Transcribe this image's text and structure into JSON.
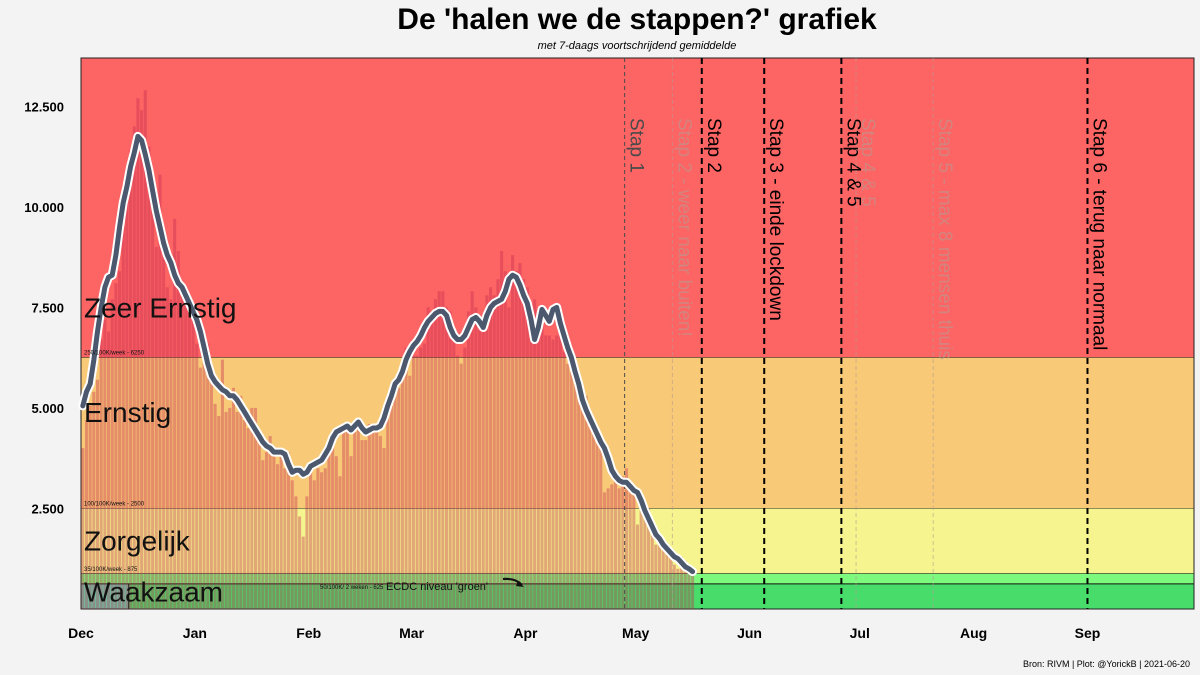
{
  "title": "De 'halen we de stappen?' grafiek",
  "subtitle": "met 7-daags voortschrijdend gemiddelde",
  "caption": "Bron: RIVM | Plot: @YorickB  |  2021-06-20",
  "chart_data": {
    "type": "bar",
    "ylim": [
      0,
      13700
    ],
    "xlim": [
      "2020-12-01",
      "2021-09-30"
    ],
    "yticks": [
      {
        "value": 2500,
        "label": "2.500"
      },
      {
        "value": 5000,
        "label": "5.000"
      },
      {
        "value": 7500,
        "label": "7.500"
      },
      {
        "value": 10000,
        "label": "10.000"
      },
      {
        "value": 12500,
        "label": "12.500"
      }
    ],
    "xticks": [
      {
        "date": "2020-12-01",
        "label": "Dec"
      },
      {
        "date": "2021-01-01",
        "label": "Jan"
      },
      {
        "date": "2021-02-01",
        "label": "Feb"
      },
      {
        "date": "2021-03-01",
        "label": "Mar"
      },
      {
        "date": "2021-04-01",
        "label": "Apr"
      },
      {
        "date": "2021-05-01",
        "label": "May"
      },
      {
        "date": "2021-06-01",
        "label": "Jun"
      },
      {
        "date": "2021-07-01",
        "label": "Jul"
      },
      {
        "date": "2021-08-01",
        "label": "Aug"
      },
      {
        "date": "2021-09-01",
        "label": "Sep"
      }
    ],
    "zones": [
      {
        "name": "Zeer Ernstig",
        "from": 6250,
        "to": 13700,
        "color": "#fd6464",
        "threshold_label": "250/100K/week - 6250"
      },
      {
        "name": "Ernstig",
        "from": 2500,
        "to": 6250,
        "color": "#f8ca78",
        "threshold_label": "100/100K/week - 2500"
      },
      {
        "name": "Zorgelijk",
        "from": 875,
        "to": 2500,
        "color": "#f6f48e",
        "threshold_label": "35/100K/week - 875"
      },
      {
        "name": "Waakzaam",
        "from": 0,
        "to": 875,
        "color": "#7df97d",
        "threshold_label": ""
      }
    ],
    "ecdc": {
      "value": 625,
      "label": "ECDC niveau 'groen'",
      "small_label": "50/100K/ 2 weken - 625",
      "color": "#66cfaa",
      "start_date": "2020-12-14"
    },
    "steps": [
      {
        "label": "Stap 1",
        "date": "2021-04-28",
        "style": "thin",
        "color": "#4a4a4a"
      },
      {
        "label": "Stap 2 - weer naar buiten!",
        "date": "2021-05-11",
        "style": "faint",
        "color": "#b89a90"
      },
      {
        "label": "Stap 2",
        "date": "2021-05-19",
        "style": "bold",
        "color": "#000000"
      },
      {
        "label": "Stap 3 - einde lockdown",
        "date": "2021-06-05",
        "style": "bold",
        "color": "#000000"
      },
      {
        "label": "Stap 4 & 5",
        "date": "2021-06-26",
        "style": "bold",
        "color": "#000000"
      },
      {
        "label": "Stap 4 & 5",
        "date": "2021-06-30",
        "style": "faint",
        "color": "#b89a90"
      },
      {
        "label": "Stap 5 - max 8 mensen thuis",
        "date": "2021-07-21",
        "style": "faint",
        "color": "#b89a90"
      },
      {
        "label": "Stap 6 - terug naar normaal",
        "date": "2021-09-01",
        "style": "bold",
        "color": "#000000"
      }
    ],
    "series": [
      {
        "name": "7-daags voortschrijdend gemiddelde",
        "color": "#4b586d",
        "start": "2020-12-01",
        "values": [
          5050,
          5400,
          5600,
          6200,
          6900,
          7500,
          8000,
          8250,
          8300,
          8800,
          9500,
          10100,
          10500,
          11000,
          11350,
          11750,
          11650,
          11300,
          10900,
          10400,
          9900,
          9500,
          9100,
          8800,
          8600,
          8300,
          8100,
          8000,
          7800,
          7600,
          7400,
          7200,
          6900,
          6500,
          6100,
          5800,
          5650,
          5550,
          5450,
          5400,
          5300,
          5300,
          5200,
          5050,
          4900,
          4750,
          4600,
          4450,
          4300,
          4150,
          4050,
          4000,
          3900,
          3900,
          3900,
          3850,
          3600,
          3400,
          3450,
          3450,
          3350,
          3400,
          3550,
          3600,
          3650,
          3700,
          3850,
          4000,
          4250,
          4400,
          4450,
          4500,
          4550,
          4450,
          4550,
          4650,
          4500,
          4400,
          4450,
          4500,
          4500,
          4550,
          4750,
          5050,
          5300,
          5600,
          5700,
          5900,
          6200,
          6400,
          6550,
          6650,
          6800,
          7000,
          7150,
          7250,
          7350,
          7400,
          7400,
          7300,
          7000,
          6800,
          6700,
          6700,
          6800,
          7000,
          7200,
          7250,
          7150,
          7000,
          7300,
          7500,
          7600,
          7650,
          7700,
          7900,
          8200,
          8300,
          8250,
          8050,
          7800,
          7600,
          7200,
          6700,
          7000,
          7450,
          7300,
          7150,
          7450,
          7500,
          7100,
          6800,
          6500,
          6250,
          5900,
          5600,
          5200,
          4950,
          4750,
          4550,
          4350,
          4150,
          4000,
          3750,
          3450,
          3300,
          3200,
          3150,
          3150,
          3050,
          2950,
          2900,
          2700,
          2450,
          2250,
          2050,
          1850,
          1750,
          1600,
          1500,
          1400,
          1300,
          1250,
          1150,
          1050,
          1000,
          930
        ]
      },
      {
        "name": "daily",
        "start": "2020-12-01",
        "values": [
          4000,
          4700,
          5050,
          5400,
          5700,
          6700,
          7200,
          6900,
          7700,
          8100,
          8400,
          9500,
          10500,
          11400,
          12000,
          12700,
          12400,
          12900,
          11500,
          10200,
          9000,
          10800,
          9500,
          8000,
          7700,
          9700,
          8900,
          8000,
          7900,
          7800,
          7300,
          6600,
          6000,
          6800,
          6600,
          6000,
          5100,
          4800,
          6200,
          4900,
          5000,
          5500,
          4900,
          5300,
          4700,
          4500,
          5000,
          5000,
          4200,
          3700,
          3900,
          4300,
          3800,
          3600,
          3900,
          3500,
          3900,
          3200,
          2800,
          2300,
          1800,
          2800,
          3600,
          3200,
          3500,
          3400,
          3500,
          4000,
          4400,
          3800,
          3300,
          4500,
          4500,
          3800,
          4400,
          4500,
          4200,
          4200,
          4600,
          4400,
          4600,
          4300,
          4000,
          5000,
          5300,
          5400,
          5500,
          6000,
          6500,
          5800,
          6300,
          6300,
          6500,
          6600,
          7500,
          7400,
          7700,
          7900,
          7900,
          7500,
          7400,
          6700,
          6300,
          6100,
          6500,
          7400,
          7900,
          7500,
          7200,
          7200,
          7800,
          8000,
          7800,
          8200,
          8900,
          8400,
          7500,
          8800,
          8400,
          8600,
          8200,
          8000,
          7600,
          7700,
          7500,
          7500,
          6800,
          6800,
          6700,
          6800,
          7300,
          6400,
          6100,
          5900,
          6000,
          5800,
          5000,
          5300,
          4700,
          4700,
          4500,
          4000,
          2900,
          3000,
          3100,
          3400,
          3000,
          3300,
          3500,
          3100,
          2900,
          2100,
          2600,
          2300,
          2500,
          2000,
          1600,
          1800,
          1600,
          1400,
          1300,
          1100,
          1000,
          1300,
          1200,
          900,
          900
        ]
      }
    ]
  }
}
